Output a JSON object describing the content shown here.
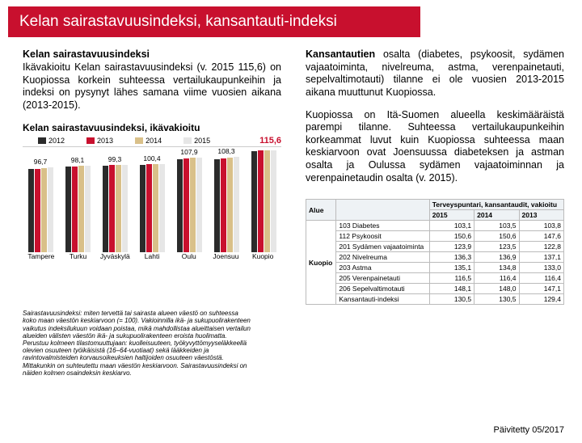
{
  "title": "Kelan sairastavuusindeksi, kansantauti-indeksi",
  "left": {
    "subhead": "Kelan sairastavuusindeksi",
    "para": "Ikävakioitu Kelan sairastavuusindeksi (v. 2015 115,6) on Kuopiossa korkein suhteessa vertailukaupunkeihin ja indeksi on pysynyt lähes samana viime vuosien aikana (2013-2015)."
  },
  "right": {
    "para1_a": "Kansantautien",
    "para1_b": " osalta (diabetes, psykoosit, sydämen vajaatoiminta, nivelreuma, astma, verenpainetauti, sepelvaltimotauti) tilanne ei ole vuosien 2013-2015 aikana muuttunut Kuopiossa.",
    "para2": "Kuopiossa on Itä-Suomen alueella keskimääräistä parempi tilanne. Suhteessa vertailukaupunkeihin korkeammat luvut kuin Kuopiossa suhteessa maan keskiarvoon ovat Joensuussa diabeteksen ja astman osalta ja Oulussa sydämen vajaatoiminnan ja verenpainetaudin osalta (v. 2015)."
  },
  "chart": {
    "title": "Kelan sairastavuusindeksi, ikävakioitu",
    "legend": [
      "2012",
      "2013",
      "2014",
      "2015"
    ],
    "legend_colors": [
      "#2b2b2b",
      "#c8102e",
      "#d9c089",
      "#e6e6e6"
    ],
    "ymax": 120,
    "categories": [
      "Tampere",
      "Turku",
      "Jyväskylä",
      "Lahti",
      "Oulu",
      "Joensuu",
      "Kuopio"
    ],
    "series": [
      [
        95,
        95,
        96,
        96.7
      ],
      [
        97,
        97,
        98,
        98.1
      ],
      [
        98,
        99,
        99,
        99.3
      ],
      [
        99,
        100,
        100,
        100.4
      ],
      [
        106,
        107,
        108,
        107.9
      ],
      [
        106,
        107,
        108,
        108.3
      ],
      [
        115,
        116,
        116,
        115.6
      ]
    ],
    "top_labels": [
      "96,7",
      "98,1",
      "99,3",
      "100,4",
      "107,9",
      "108,3",
      ""
    ],
    "highlight": "115,6"
  },
  "footnote": "Sairastavuusindeksi: miten tervettä tai sairasta alueen väestö on suhteessa koko maan väestön keskiarvoon (= 100). Vakioinnilla ikä- ja sukupuolirakenteen vaikutus indeksilukuun voidaan poistaa, mikä mahdollistaa alueittaisen vertailun alueiden välisten väestön ikä- ja sukupuolirakenteen eroista huolimatta. Perustuu kolmeen tilastomuuttujaan: kuolleisuuteen, työkyvyttömyyseläkkeellä olevien osuuteen työikäisistä (16–64-vuotiaat) sekä lääkkeiden ja ravintovalmisteiden korvausoikeuksien haltijoiden osuuteen väestöstä. Mittakunkin on suhteutettu maan väestön keskiarvoon. Sairastavuusindeksi on näiden kolmen osaindeksin keskiarvo.",
  "table": {
    "header_top": "Terveyspuntari, kansantaudit, vakioitu",
    "years": [
      "2015",
      "2014",
      "2013"
    ],
    "area": "Kuopio",
    "rows": [
      {
        "code": "103",
        "name": "Diabetes",
        "v": [
          "103,1",
          "103,5",
          "103,8"
        ]
      },
      {
        "code": "112",
        "name": "Psykoosit",
        "v": [
          "150,6",
          "150,6",
          "147,6"
        ]
      },
      {
        "code": "201",
        "name": "Sydämen vajaatoiminta",
        "v": [
          "123,9",
          "123,5",
          "122,8"
        ]
      },
      {
        "code": "202",
        "name": "Nivelreuma",
        "v": [
          "136,3",
          "136,9",
          "137,1"
        ]
      },
      {
        "code": "203",
        "name": "Astma",
        "v": [
          "135,1",
          "134,8",
          "133,0"
        ]
      },
      {
        "code": "205",
        "name": "Verenpainetauti",
        "v": [
          "116,5",
          "116,4",
          "116,4"
        ]
      },
      {
        "code": "206",
        "name": "Sepelvaltimotauti",
        "v": [
          "148,1",
          "148,0",
          "147,1"
        ]
      },
      {
        "code": "",
        "name": "Kansantauti-indeksi",
        "v": [
          "130,5",
          "130,5",
          "129,4"
        ]
      }
    ]
  },
  "updated": "Päivitetty 05/2017"
}
